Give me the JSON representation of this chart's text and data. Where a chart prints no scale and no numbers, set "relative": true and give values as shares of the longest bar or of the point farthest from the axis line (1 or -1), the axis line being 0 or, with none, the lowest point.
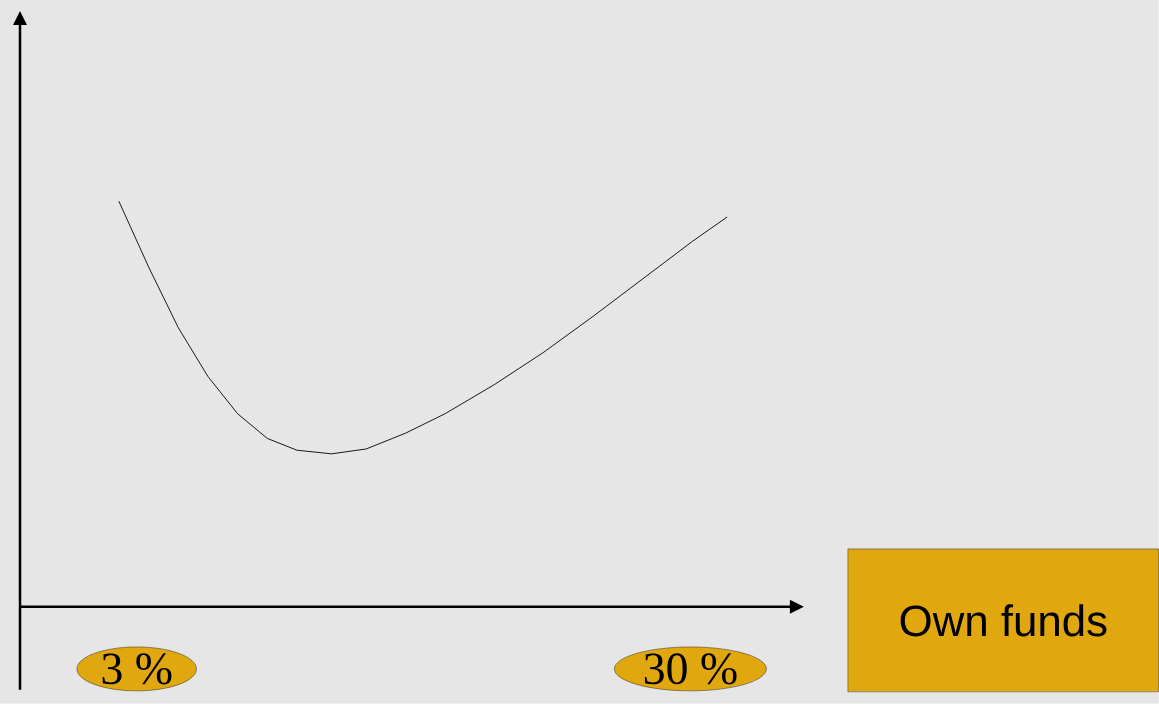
{
  "chart_data": {
    "type": "line",
    "xlabel": "Own funds",
    "relative": true,
    "tick_labels": "x",
    "xlim": [
      -2.69,
      34.9
    ],
    "xticks": [
      {
        "value": 3,
        "label": "3 %"
      },
      {
        "value": 30,
        "label": "30 %"
      }
    ],
    "series": [
      {
        "color": "#000000",
        "x": [
          2.13,
          3.58,
          5.03,
          6.47,
          7.92,
          9.37,
          10.81,
          12.5,
          14.19,
          16.11,
          18.04,
          20.45,
          22.86,
          25.28,
          27.69,
          30.1,
          31.79
        ],
        "values": [
          1.0,
          0.838,
          0.688,
          0.568,
          0.476,
          0.415,
          0.386,
          0.377,
          0.389,
          0.428,
          0.476,
          0.548,
          0.628,
          0.717,
          0.809,
          0.901,
          0.961
        ]
      }
    ]
  }
}
